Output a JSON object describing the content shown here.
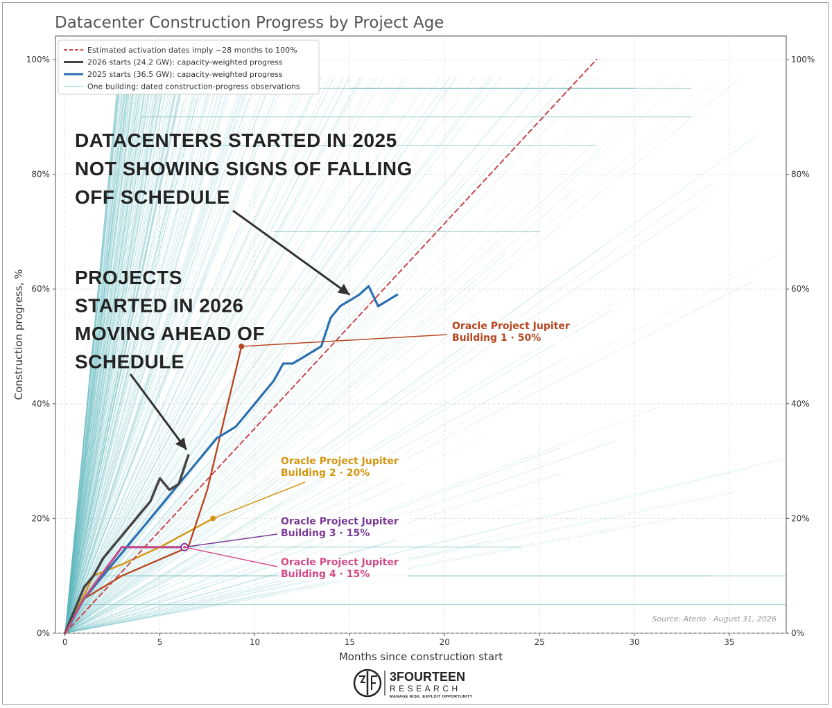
{
  "chart_data": {
    "type": "line",
    "title": "Datacenter Construction Progress by Project Age",
    "xlabel": "Months since construction start",
    "ylabel": "Construction progress, %",
    "xlim": [
      -0.5,
      38
    ],
    "ylim": [
      0,
      1.0
    ],
    "xticks": [
      0,
      5,
      10,
      15,
      20,
      25,
      30,
      35
    ],
    "yticks": [
      0,
      0.2,
      0.4,
      0.6,
      0.8,
      1.0
    ],
    "ytick_labels": [
      "0%",
      "20%",
      "40%",
      "60%",
      "80%",
      "100%"
    ],
    "grid": true,
    "legend_position": "top-left",
    "legend": [
      {
        "label": "Estimated activation dates imply ~28 months to 100%",
        "style": "dashed",
        "color": "#c8464b"
      },
      {
        "label": "2026 starts (24.2 GW): capacity-weighted progress",
        "style": "solid",
        "color": "#444444"
      },
      {
        "label": "2025 starts (36.5 GW): capacity-weighted progress",
        "style": "solid",
        "color": "#2a6fb0"
      },
      {
        "label": "One building: dated construction-progress observations",
        "style": "thin",
        "color": "#8fd3d6"
      }
    ],
    "series": [
      {
        "name": "Estimated activation dates imply ~28 months to 100%",
        "color": "#c8464b",
        "style": "dashed",
        "x": [
          0,
          28
        ],
        "y": [
          0,
          1.0
        ]
      },
      {
        "name": "2026 starts (24.2 GW): capacity-weighted progress",
        "color": "#444444",
        "x": [
          0,
          0.5,
          1,
          1.5,
          2,
          2.5,
          3,
          3.5,
          4,
          4.5,
          5,
          5.5,
          6,
          6.5
        ],
        "y": [
          0,
          0.04,
          0.08,
          0.1,
          0.13,
          0.15,
          0.17,
          0.19,
          0.21,
          0.23,
          0.27,
          0.25,
          0.26,
          0.31
        ]
      },
      {
        "name": "2025 starts (36.5 GW): capacity-weighted progress",
        "color": "#2a6fb0",
        "x": [
          0,
          0.5,
          1,
          1.5,
          2,
          2.5,
          3,
          3.5,
          4,
          4.5,
          5,
          5.5,
          6,
          6.5,
          7,
          7.5,
          8,
          8.5,
          9,
          9.5,
          10,
          10.5,
          11,
          11.5,
          12,
          12.5,
          13,
          13.5,
          14,
          14.5,
          15,
          15.5,
          16,
          16.5,
          17,
          17.5
        ],
        "y": [
          0,
          0.03,
          0.06,
          0.08,
          0.1,
          0.12,
          0.14,
          0.16,
          0.18,
          0.2,
          0.22,
          0.24,
          0.26,
          0.28,
          0.3,
          0.32,
          0.34,
          0.35,
          0.36,
          0.38,
          0.4,
          0.42,
          0.44,
          0.47,
          0.47,
          0.48,
          0.49,
          0.5,
          0.55,
          0.57,
          0.58,
          0.59,
          0.605,
          0.57,
          0.58,
          0.59
        ]
      },
      {
        "name": "Oracle Project Jupiter Building 1",
        "color": "#b8461f",
        "x": [
          0,
          1,
          3,
          6.5,
          7.5,
          9.3
        ],
        "y": [
          0,
          0.06,
          0.1,
          0.15,
          0.25,
          0.5
        ]
      },
      {
        "name": "Oracle Project Jupiter Building 2",
        "color": "#d4950f",
        "x": [
          0,
          1.5,
          3,
          5,
          7.8
        ],
        "y": [
          0,
          0.1,
          0.12,
          0.15,
          0.2
        ]
      },
      {
        "name": "Oracle Project Jupiter Building 3",
        "color": "#7b3a96",
        "x": [
          0,
          1,
          3,
          6.3
        ],
        "y": [
          0,
          0.06,
          0.15,
          0.15
        ]
      },
      {
        "name": "Oracle Project Jupiter Building 4",
        "color": "#d54a86",
        "x": [
          0,
          1,
          3,
          6.3
        ],
        "y": [
          0,
          0.06,
          0.15,
          0.15
        ]
      }
    ],
    "annotations": [
      {
        "text": "DATACENTERS STARTED IN 2025",
        "group": "a1",
        "arrow_to": [
          15,
          0.59
        ]
      },
      {
        "text": "NOT SHOWING SIGNS OF FALLING",
        "group": "a1"
      },
      {
        "text": "OFF SCHEDULE",
        "group": "a1"
      },
      {
        "text": "PROJECTS",
        "group": "a2",
        "arrow_to": [
          6.4,
          0.32
        ]
      },
      {
        "text": "STARTED IN 2026",
        "group": "a2"
      },
      {
        "text": "MOVING AHEAD OF",
        "group": "a2"
      },
      {
        "text": "SCHEDULE",
        "group": "a2"
      }
    ],
    "callouts": [
      {
        "line1": "Oracle Project Jupiter",
        "line2": "Building 1  ·  50%",
        "color": "#b8461f",
        "point": [
          9.3,
          0.5
        ]
      },
      {
        "line1": "Oracle Project Jupiter",
        "line2": "Building 2  ·  20%",
        "color": "#d4950f",
        "point": [
          7.8,
          0.2
        ]
      },
      {
        "line1": "Oracle Project Jupiter",
        "line2": "Building 3  ·  15%",
        "color": "#7b3a96",
        "point": [
          6.3,
          0.15
        ]
      },
      {
        "line1": "Oracle Project Jupiter",
        "line2": "Building 4  ·  15%",
        "color": "#d54a86",
        "point": [
          6.3,
          0.15
        ]
      }
    ],
    "source": "Source: Aterio · August 31, 2026"
  },
  "logo": {
    "name": "3FOURTEEN",
    "sub": "RESEARCH",
    "tagline": "MANAGE RISK. EXPLOIT OPPORTUNITY"
  }
}
